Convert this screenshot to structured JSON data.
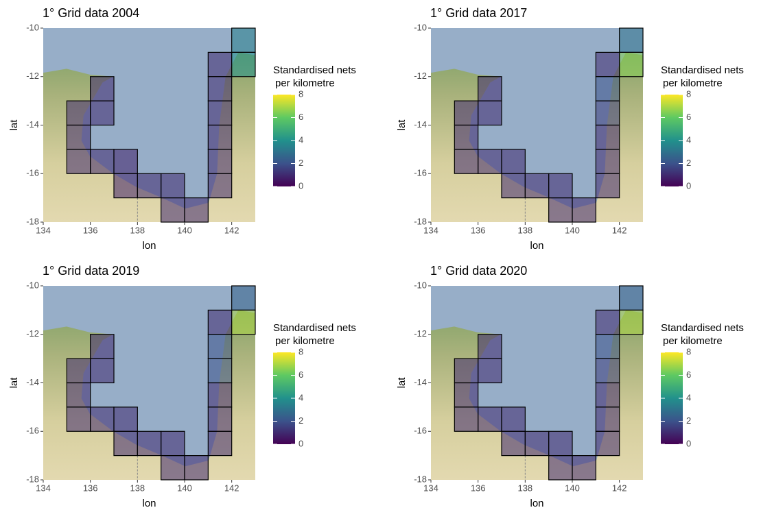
{
  "chart_data": [
    {
      "type": "heatmap",
      "title": "1° Grid data 2004",
      "xlabel": "lon",
      "ylabel": "lat",
      "xlim": [
        134,
        143
      ],
      "ylim": [
        -18,
        -10
      ],
      "xticks": [
        134,
        136,
        138,
        140,
        142
      ],
      "yticks": [
        -18,
        -16,
        -14,
        -12,
        -10
      ],
      "legend_title": [
        "Standardised nets",
        "per kilometre"
      ],
      "clim": [
        0,
        8
      ],
      "cticks": [
        0,
        2,
        4,
        6,
        8
      ],
      "colormap": [
        "#440154",
        "#3b528b",
        "#21918c",
        "#5ec962",
        "#fde725"
      ],
      "x": [
        135.5,
        135.5,
        135.5,
        136.5,
        136.5,
        136.5,
        137.5,
        137.5,
        138.5,
        139.5,
        139.5,
        140.5,
        141.5,
        141.5,
        141.5,
        141.5,
        141.5,
        141.5,
        142.5,
        142.5
      ],
      "y": [
        -13.5,
        -14.5,
        -15.5,
        -12.5,
        -13.5,
        -15.5,
        -15.5,
        -16.5,
        -16.5,
        -16.5,
        -17.5,
        -17.5,
        -11.5,
        -12.5,
        -13.5,
        -14.5,
        -15.5,
        -16.5,
        -10.5,
        -11.5
      ],
      "values": [
        1,
        1,
        1,
        1,
        1,
        1,
        0.8,
        0.8,
        1,
        1,
        1,
        1,
        1,
        1,
        1,
        1,
        1,
        1,
        3.5,
        4
      ]
    },
    {
      "type": "heatmap",
      "title": "1° Grid data 2017",
      "xlabel": "lon",
      "ylabel": "lat",
      "xlim": [
        134,
        143
      ],
      "ylim": [
        -18,
        -10
      ],
      "xticks": [
        134,
        136,
        138,
        140,
        142
      ],
      "yticks": [
        -18,
        -16,
        -14,
        -12,
        -10
      ],
      "legend_title": [
        "Standardised nets",
        "per kilometre"
      ],
      "clim": [
        0,
        8
      ],
      "cticks": [
        0,
        2,
        4,
        6,
        8
      ],
      "colormap": [
        "#440154",
        "#3b528b",
        "#21918c",
        "#5ec962",
        "#fde725"
      ],
      "x": [
        135.5,
        135.5,
        135.5,
        136.5,
        136.5,
        136.5,
        137.5,
        137.5,
        138.5,
        139.5,
        139.5,
        140.5,
        141.5,
        141.5,
        141.5,
        141.5,
        141.5,
        141.5,
        142.5,
        142.5
      ],
      "y": [
        -13.5,
        -14.5,
        -15.5,
        -12.5,
        -13.5,
        -15.5,
        -15.5,
        -16.5,
        -16.5,
        -16.5,
        -17.5,
        -17.5,
        -11.5,
        -12.5,
        -13.5,
        -14.5,
        -15.5,
        -16.5,
        -10.5,
        -11.5
      ],
      "values": [
        1,
        1,
        1,
        1,
        1,
        1,
        1,
        1,
        1,
        1,
        1,
        1,
        1,
        2,
        1.5,
        1,
        1,
        1,
        3,
        6.5
      ]
    },
    {
      "type": "heatmap",
      "title": "1° Grid data 2019",
      "xlabel": "lon",
      "ylabel": "lat",
      "xlim": [
        134,
        143
      ],
      "ylim": [
        -18,
        -10
      ],
      "xticks": [
        134,
        136,
        138,
        140,
        142
      ],
      "yticks": [
        -18,
        -16,
        -14,
        -12,
        -10
      ],
      "legend_title": [
        "Standardised nets",
        "per kilometre"
      ],
      "clim": [
        0,
        8
      ],
      "cticks": [
        0,
        2,
        4,
        6,
        8
      ],
      "colormap": [
        "#440154",
        "#3b528b",
        "#21918c",
        "#5ec962",
        "#fde725"
      ],
      "x": [
        135.5,
        135.5,
        135.5,
        136.5,
        136.5,
        136.5,
        137.5,
        137.5,
        138.5,
        139.5,
        139.5,
        140.5,
        141.5,
        141.5,
        141.5,
        141.5,
        141.5,
        141.5,
        142.5,
        142.5
      ],
      "y": [
        -13.5,
        -14.5,
        -15.5,
        -12.5,
        -13.5,
        -15.5,
        -15.5,
        -16.5,
        -16.5,
        -16.5,
        -17.5,
        -17.5,
        -11.5,
        -12.5,
        -13.5,
        -14.5,
        -15.5,
        -16.5,
        -10.5,
        -11.5
      ],
      "values": [
        1,
        1,
        1,
        1,
        1,
        1,
        1,
        1,
        1,
        1,
        1,
        1,
        1,
        2,
        2,
        1,
        1,
        1,
        2.5,
        7
      ]
    },
    {
      "type": "heatmap",
      "title": "1° Grid data 2020",
      "xlabel": "lon",
      "ylabel": "lat",
      "xlim": [
        134,
        143
      ],
      "ylim": [
        -18,
        -10
      ],
      "xticks": [
        134,
        136,
        138,
        140,
        142
      ],
      "yticks": [
        -18,
        -16,
        -14,
        -12,
        -10
      ],
      "legend_title": [
        "Standardised nets",
        "per kilometre"
      ],
      "clim": [
        0,
        8
      ],
      "cticks": [
        0,
        2,
        4,
        6,
        8
      ],
      "colormap": [
        "#440154",
        "#3b528b",
        "#21918c",
        "#5ec962",
        "#fde725"
      ],
      "x": [
        135.5,
        135.5,
        135.5,
        136.5,
        136.5,
        136.5,
        137.5,
        137.5,
        138.5,
        139.5,
        139.5,
        140.5,
        141.5,
        141.5,
        141.5,
        141.5,
        141.5,
        141.5,
        142.5,
        142.5
      ],
      "y": [
        -13.5,
        -14.5,
        -15.5,
        -12.5,
        -13.5,
        -15.5,
        -15.5,
        -16.5,
        -16.5,
        -16.5,
        -17.5,
        -17.5,
        -11.5,
        -12.5,
        -13.5,
        -14.5,
        -15.5,
        -16.5,
        -10.5,
        -11.5
      ],
      "values": [
        1,
        1,
        1,
        1,
        1,
        1,
        1,
        1,
        1,
        1,
        1,
        1,
        1,
        2,
        1.5,
        1,
        1,
        1,
        2.5,
        7
      ]
    }
  ]
}
